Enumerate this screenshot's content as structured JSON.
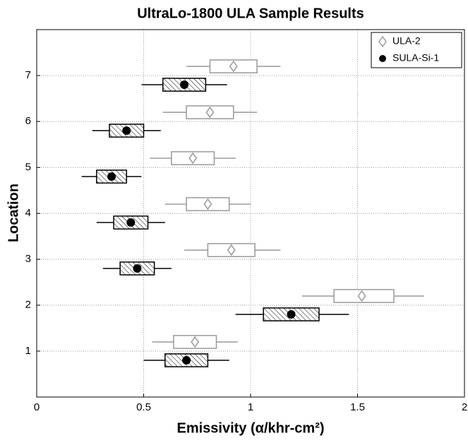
{
  "chart_data": {
    "type": "horizontal-box",
    "title": "UltraLo-1800 ULA Sample Results",
    "xlabel": "Emissivity (α/khr-cm²)",
    "ylabel": "Location",
    "xlim": [
      0,
      2
    ],
    "xticks": [
      0,
      0.5,
      1,
      1.5,
      2
    ],
    "ylim": [
      0,
      8
    ],
    "yticks": [
      1,
      2,
      3,
      4,
      5,
      6,
      7
    ],
    "grid": true,
    "legend": "upper right",
    "series": [
      {
        "name": "ULA-2",
        "color": "#999999",
        "marker": "diamond",
        "hatched": false,
        "y": [
          1.2,
          2.2,
          3.2,
          4.2,
          5.2,
          6.2,
          7.2
        ],
        "values": [
          0.74,
          1.52,
          0.91,
          0.8,
          0.73,
          0.81,
          0.92
        ],
        "box_low": [
          0.64,
          1.39,
          0.8,
          0.7,
          0.63,
          0.7,
          0.81
        ],
        "box_high": [
          0.84,
          1.67,
          1.02,
          0.9,
          0.83,
          0.92,
          1.03
        ],
        "whisker_low": [
          0.54,
          1.24,
          0.69,
          0.6,
          0.53,
          0.59,
          0.7
        ],
        "whisker_high": [
          0.94,
          1.81,
          1.14,
          1.0,
          0.93,
          1.03,
          1.14
        ]
      },
      {
        "name": "SULA-Si-1",
        "color": "#000000",
        "marker": "circle",
        "hatched": true,
        "y": [
          0.8,
          1.8,
          2.8,
          3.8,
          4.8,
          5.8,
          6.8
        ],
        "values": [
          0.7,
          1.19,
          0.47,
          0.44,
          0.35,
          0.42,
          0.69
        ],
        "box_low": [
          0.6,
          1.06,
          0.39,
          0.36,
          0.28,
          0.34,
          0.59
        ],
        "box_high": [
          0.8,
          1.32,
          0.55,
          0.52,
          0.42,
          0.5,
          0.79
        ],
        "whisker_low": [
          0.5,
          0.93,
          0.31,
          0.28,
          0.21,
          0.26,
          0.49
        ],
        "whisker_high": [
          0.9,
          1.46,
          0.63,
          0.6,
          0.49,
          0.58,
          0.89
        ]
      }
    ]
  }
}
